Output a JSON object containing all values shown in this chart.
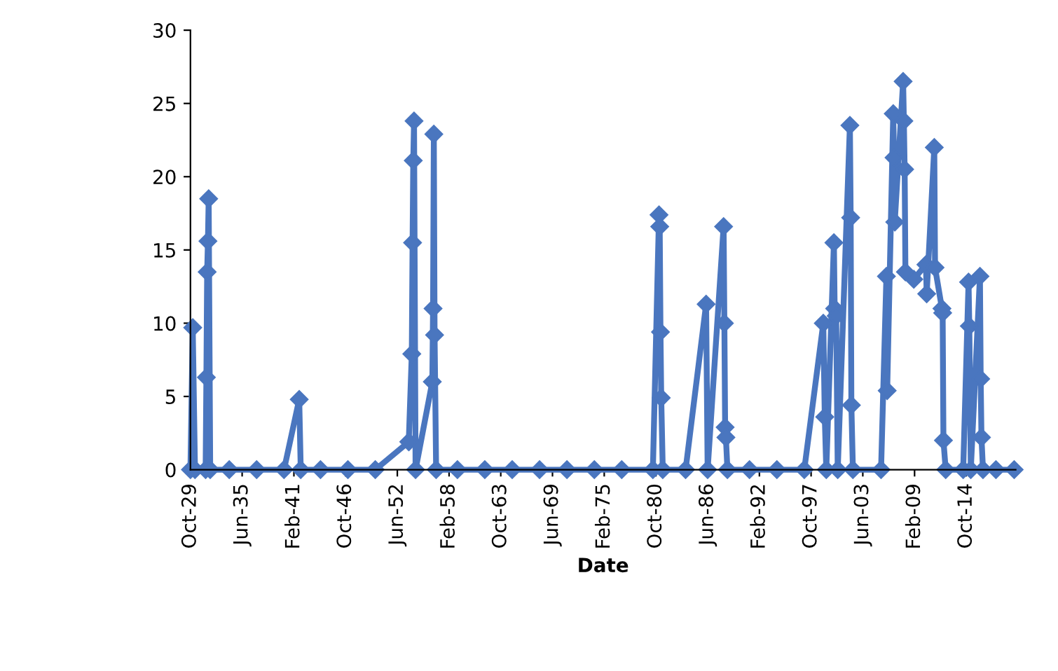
{
  "chart_data": {
    "type": "line",
    "xlabel": "Date",
    "marker": "diamond",
    "line_style": "solid",
    "grid": false,
    "legend": false,
    "x": [
      "1929-10",
      "1930-01",
      "1930-04",
      "1931-06",
      "1931-07",
      "1931-08",
      "1931-09",
      "1931-10",
      "1931-12",
      "1934-01",
      "1937-01",
      "1940-01",
      "1941-09",
      "1941-11",
      "1944-01",
      "1947-01",
      "1950-01",
      "1953-09",
      "1954-01",
      "1954-02",
      "1954-03",
      "1954-04",
      "1954-06",
      "1956-04",
      "1956-05",
      "1956-06",
      "1956-07",
      "1956-09",
      "1959-01",
      "1962-01",
      "1965-01",
      "1968-01",
      "1971-01",
      "1974-01",
      "1977-01",
      "1980-06",
      "1981-02",
      "1981-03",
      "1981-04",
      "1981-05",
      "1981-07",
      "1984-01",
      "1986-04",
      "1986-06",
      "1988-03",
      "1988-04",
      "1988-05",
      "1988-06",
      "1988-08",
      "1991-01",
      "1994-01",
      "1997-01",
      "1999-02",
      "1999-04",
      "1999-06",
      "2000-04",
      "2000-05",
      "2000-07",
      "2000-09",
      "2002-01",
      "2002-02",
      "2002-03",
      "2002-05",
      "2005-06",
      "2006-01",
      "2006-02",
      "2006-10",
      "2006-11",
      "2006-12",
      "2007-11",
      "2007-12",
      "2008-01",
      "2008-02",
      "2009-01",
      "2010-05",
      "2010-06",
      "2011-04",
      "2011-05",
      "2012-02",
      "2012-03",
      "2012-04",
      "2012-07",
      "2014-06",
      "2015-01",
      "2015-02",
      "2015-04",
      "2016-04",
      "2016-05",
      "2016-06",
      "2016-08",
      "2018-01",
      "2020-01"
    ],
    "series": [
      {
        "color": "#4a76bf",
        "values": [
          0,
          9.7,
          0,
          0,
          6.3,
          13.5,
          15.6,
          18.5,
          0,
          0,
          0,
          0,
          4.8,
          0,
          0,
          0,
          0,
          1.9,
          7.9,
          15.5,
          21.1,
          23.8,
          0,
          6.0,
          11.0,
          22.9,
          9.2,
          0,
          0,
          0,
          0,
          0,
          0,
          0,
          0,
          0,
          17.4,
          16.6,
          9.4,
          4.9,
          0,
          0,
          11.3,
          0,
          16.6,
          10.0,
          2.9,
          2.2,
          0,
          0,
          0,
          0,
          10.0,
          3.6,
          0,
          15.5,
          11.0,
          10.5,
          0,
          23.5,
          17.2,
          4.4,
          0,
          0,
          13.2,
          5.4,
          24.3,
          21.3,
          16.9,
          26.5,
          23.8,
          20.5,
          13.5,
          13.0,
          14.0,
          12.0,
          22.0,
          13.8,
          11.0,
          10.7,
          2.0,
          0,
          0,
          12.8,
          9.8,
          0,
          13.2,
          6.2,
          2.2,
          0,
          0,
          0
        ]
      }
    ],
    "xlim": [
      "1929-10",
      "2020-03"
    ],
    "xticks": [
      {
        "value": "1929-10",
        "label": "Oct-29"
      },
      {
        "value": "1935-06",
        "label": "Jun-35"
      },
      {
        "value": "1941-02",
        "label": "Feb-41"
      },
      {
        "value": "1946-10",
        "label": "Oct-46"
      },
      {
        "value": "1952-06",
        "label": "Jun-52"
      },
      {
        "value": "1958-02",
        "label": "Feb-58"
      },
      {
        "value": "1963-10",
        "label": "Oct-63"
      },
      {
        "value": "1969-06",
        "label": "Jun-69"
      },
      {
        "value": "1975-02",
        "label": "Feb-75"
      },
      {
        "value": "1980-10",
        "label": "Oct-80"
      },
      {
        "value": "1986-06",
        "label": "Jun-86"
      },
      {
        "value": "1992-02",
        "label": "Feb-92"
      },
      {
        "value": "1997-10",
        "label": "Oct-97"
      },
      {
        "value": "2003-06",
        "label": "Jun-03"
      },
      {
        "value": "2009-02",
        "label": "Feb-09"
      },
      {
        "value": "2014-10",
        "label": "Oct-14"
      }
    ],
    "ylim": [
      0,
      30
    ],
    "yticks": [
      0,
      5,
      10,
      15,
      20,
      25,
      30
    ]
  }
}
